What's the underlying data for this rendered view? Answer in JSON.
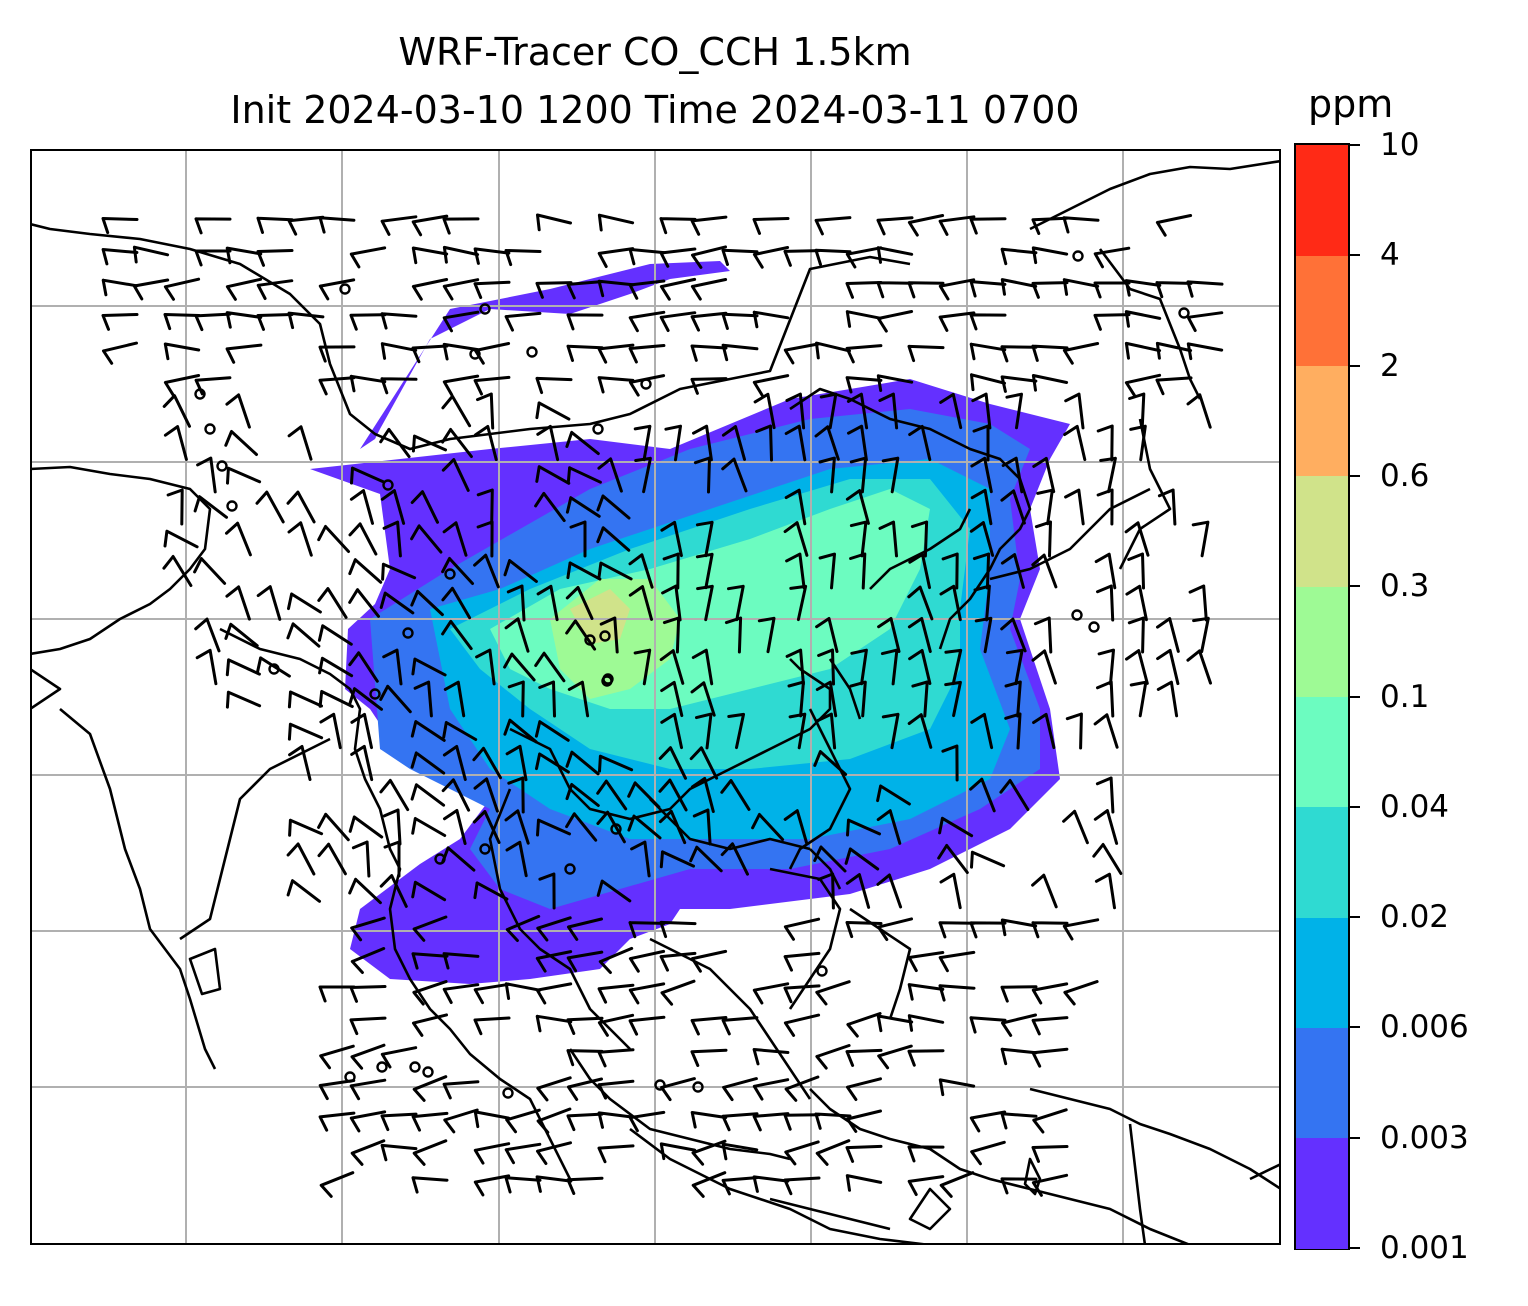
{
  "title": {
    "line1": "WRF-Tracer CO_CCH 1.5km",
    "line2": "Init 2024-03-10 1200 Time 2024-03-11 0700"
  },
  "colorbar": {
    "unit": "ppm",
    "levels": [
      "0.001",
      "0.003",
      "0.006",
      "0.02",
      "0.04",
      "0.1",
      "0.3",
      "0.6",
      "2",
      "4",
      "10"
    ],
    "colors": [
      "#6430ff",
      "#3474f2",
      "#00b2e8",
      "#2fdad2",
      "#6cfcc0",
      "#9efa95",
      "#d0e38a",
      "#ffae60",
      "#ff7137",
      "#ff2a16"
    ]
  },
  "map": {
    "gridlines": true,
    "grid_color": "#b0b0b0",
    "coastline_color": "#000000",
    "barb_color": "#000000"
  }
}
